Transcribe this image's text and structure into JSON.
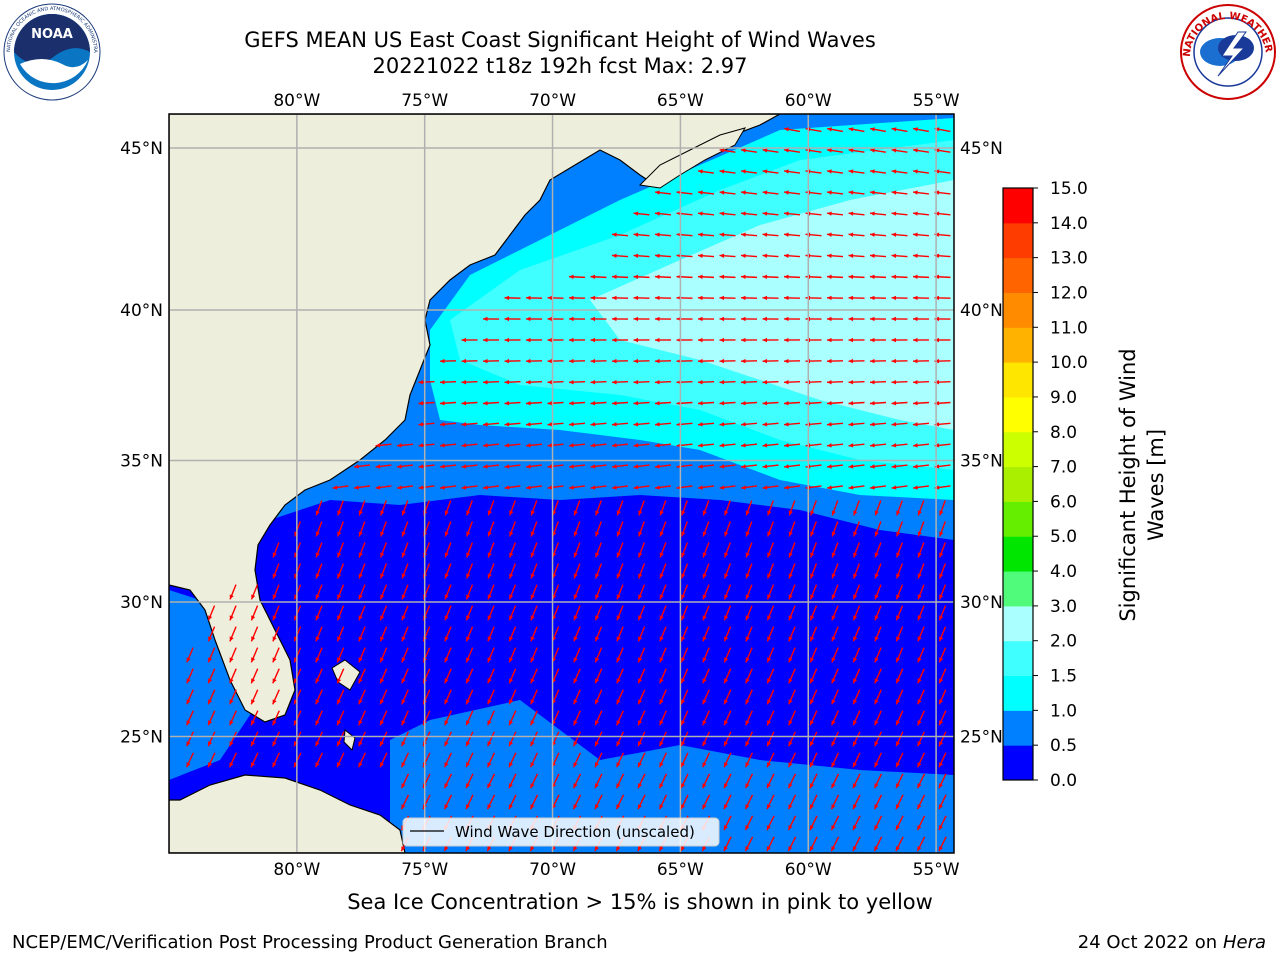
{
  "header": {
    "title_line1": "GEFS MEAN US East Coast Significant Height of Wind Waves",
    "title_line2": "20221022 t18z 192h fcst    Max: 2.97"
  },
  "logos": {
    "noaa_text": "NOAA",
    "noaa_ring_text": "NATIONAL OCEANIC AND ATMOSPHERIC ADMINISTRATION · U.S. DEPARTMENT OF COMMERCE",
    "nws_ring_text": "NATIONAL WEATHER SERVICE"
  },
  "map": {
    "lon_labels": [
      "80°W",
      "75°W",
      "70°W",
      "65°W",
      "60°W",
      "55°W"
    ],
    "lat_labels": [
      "45°N",
      "40°N",
      "35°N",
      "30°N",
      "25°N"
    ],
    "lon_values": [
      -80,
      -75,
      -70,
      -65,
      -60,
      -55
    ],
    "lat_values": [
      45,
      40,
      35,
      30,
      25
    ],
    "extent": {
      "lon": [
        -85,
        -54.3
      ],
      "lat": [
        20.5,
        46.0
      ]
    },
    "legend_label": "Wind Wave Direction (unscaled)",
    "colors": {
      "land": "#eeeedc",
      "grid": "#b0b0b0",
      "arrow": "#ff0000"
    }
  },
  "colorbar": {
    "label_line1": "Significant Height of Wind",
    "label_line2": "Waves [m]",
    "ticks": [
      "0.0",
      "0.5",
      "1.0",
      "1.5",
      "2.0",
      "3.0",
      "4.0",
      "5.0",
      "6.0",
      "7.0",
      "8.0",
      "9.0",
      "10.0",
      "11.0",
      "12.0",
      "13.0",
      "14.0",
      "15.0"
    ],
    "colors": [
      "#0000ff",
      "#0080ff",
      "#00ffff",
      "#40ffff",
      "#aaffff",
      "#50fa7b",
      "#00e600",
      "#66ee00",
      "#aaee00",
      "#ccff00",
      "#ffff00",
      "#ffe600",
      "#ffb300",
      "#ff8c00",
      "#ff6400",
      "#ff3c00",
      "#ff0000"
    ]
  },
  "footer": {
    "ice_note": "Sea Ice Concentration > 15% is shown in pink to yellow",
    "left": "NCEP/EMC/Verification Post Processing Product Generation Branch",
    "date": "24 Oct 2022 on ",
    "host": "Hera"
  }
}
